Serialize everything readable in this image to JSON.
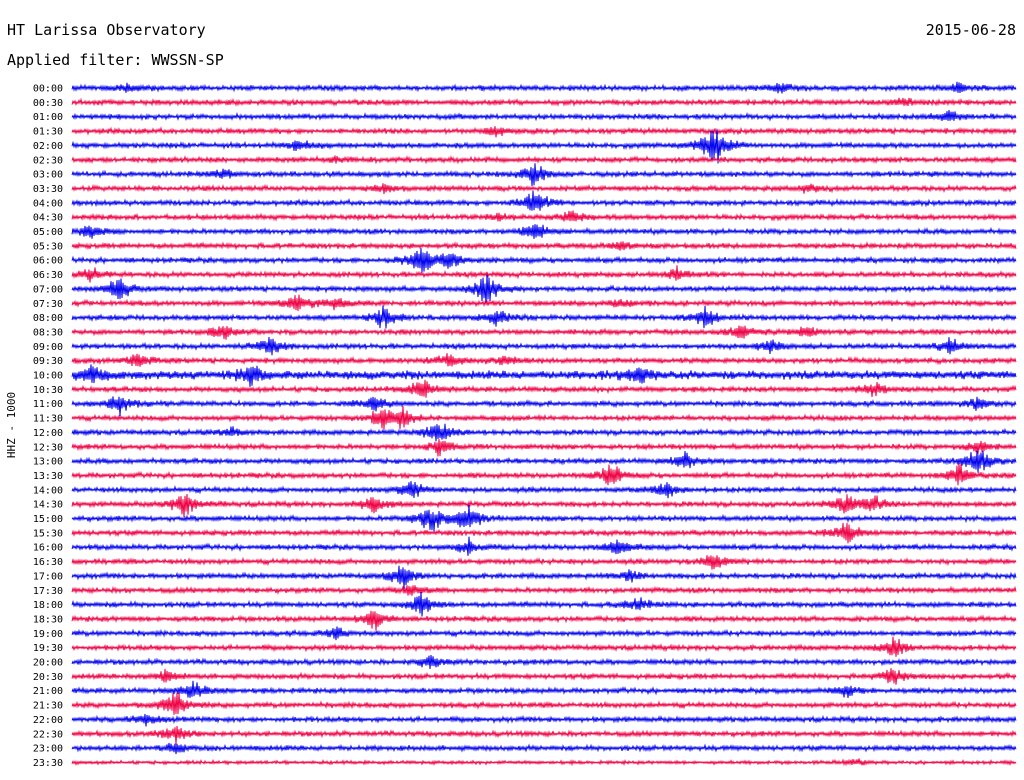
{
  "header": {
    "title": "HT Larissa Observatory",
    "date": "2015-06-28",
    "filter_text": "Applied filter: WWSSN-SP"
  },
  "axis": {
    "side_label": "HHZ - 1000"
  },
  "colors": {
    "even_trace": "#0000ee",
    "odd_trace": "#ee0044",
    "background": "#ffffff",
    "text": "#000000"
  },
  "chart_data": {
    "type": "line",
    "title": "HT Larissa Observatory",
    "subtitle": "Applied filter: WWSSN-SP",
    "ylabel": "HHZ - 1000",
    "xlabel": "",
    "grid": false,
    "legend": "none",
    "rows": [
      {
        "label": "00:00",
        "color": "even",
        "amp": 3,
        "events": [
          {
            "at": 0.06,
            "amp": 5
          },
          {
            "at": 0.75,
            "amp": 8
          },
          {
            "at": 0.94,
            "amp": 6
          }
        ]
      },
      {
        "label": "00:30",
        "color": "odd",
        "amp": 3,
        "events": [
          {
            "at": 0.88,
            "amp": 6
          }
        ]
      },
      {
        "label": "01:00",
        "color": "even",
        "amp": 3,
        "events": [
          {
            "at": 0.93,
            "amp": 7
          }
        ]
      },
      {
        "label": "01:30",
        "color": "odd",
        "amp": 3,
        "events": [
          {
            "at": 0.45,
            "amp": 6
          }
        ]
      },
      {
        "label": "02:00",
        "color": "even",
        "amp": 3,
        "events": [
          {
            "at": 0.68,
            "amp": 28
          },
          {
            "at": 0.24,
            "amp": 7
          }
        ]
      },
      {
        "label": "02:30",
        "color": "odd",
        "amp": 3,
        "events": [
          {
            "at": 0.28,
            "amp": 4
          }
        ]
      },
      {
        "label": "03:00",
        "color": "even",
        "amp": 3,
        "events": [
          {
            "at": 0.49,
            "amp": 14
          },
          {
            "at": 0.16,
            "amp": 6
          }
        ]
      },
      {
        "label": "03:30",
        "color": "odd",
        "amp": 3,
        "events": [
          {
            "at": 0.33,
            "amp": 5
          },
          {
            "at": 0.78,
            "amp": 5
          }
        ]
      },
      {
        "label": "04:00",
        "color": "even",
        "amp": 3,
        "events": [
          {
            "at": 0.49,
            "amp": 16
          }
        ]
      },
      {
        "label": "04:30",
        "color": "odd",
        "amp": 3,
        "events": [
          {
            "at": 0.53,
            "amp": 8
          },
          {
            "at": 0.45,
            "amp": 4
          }
        ]
      },
      {
        "label": "05:00",
        "color": "even",
        "amp": 3,
        "events": [
          {
            "at": 0.02,
            "amp": 8
          },
          {
            "at": 0.49,
            "amp": 12
          }
        ]
      },
      {
        "label": "05:30",
        "color": "odd",
        "amp": 3,
        "events": [
          {
            "at": 0.58,
            "amp": 5
          }
        ]
      },
      {
        "label": "06:00",
        "color": "even",
        "amp": 3,
        "events": [
          {
            "at": 0.37,
            "amp": 18
          },
          {
            "at": 0.4,
            "amp": 12
          }
        ]
      },
      {
        "label": "06:30",
        "color": "odd",
        "amp": 3,
        "events": [
          {
            "at": 0.02,
            "amp": 8
          },
          {
            "at": 0.64,
            "amp": 9
          }
        ]
      },
      {
        "label": "07:00",
        "color": "even",
        "amp": 3,
        "events": [
          {
            "at": 0.05,
            "amp": 14
          },
          {
            "at": 0.44,
            "amp": 20
          }
        ]
      },
      {
        "label": "07:30",
        "color": "odd",
        "amp": 3,
        "events": [
          {
            "at": 0.24,
            "amp": 12
          },
          {
            "at": 0.28,
            "amp": 9
          },
          {
            "at": 0.58,
            "amp": 6
          }
        ]
      },
      {
        "label": "08:00",
        "color": "even",
        "amp": 3,
        "events": [
          {
            "at": 0.33,
            "amp": 14
          },
          {
            "at": 0.45,
            "amp": 10
          },
          {
            "at": 0.67,
            "amp": 12
          }
        ]
      },
      {
        "label": "08:30",
        "color": "odd",
        "amp": 3,
        "events": [
          {
            "at": 0.16,
            "amp": 8
          },
          {
            "at": 0.71,
            "amp": 10
          },
          {
            "at": 0.78,
            "amp": 7
          }
        ]
      },
      {
        "label": "09:00",
        "color": "even",
        "amp": 3,
        "events": [
          {
            "at": 0.21,
            "amp": 12
          },
          {
            "at": 0.74,
            "amp": 10
          },
          {
            "at": 0.93,
            "amp": 9
          }
        ]
      },
      {
        "label": "09:30",
        "color": "odd",
        "amp": 3,
        "events": [
          {
            "at": 0.07,
            "amp": 9
          },
          {
            "at": 0.4,
            "amp": 10
          },
          {
            "at": 0.46,
            "amp": 7
          }
        ]
      },
      {
        "label": "10:00",
        "color": "even",
        "amp": 5,
        "events": [
          {
            "at": 0.02,
            "amp": 12
          },
          {
            "at": 0.19,
            "amp": 14
          },
          {
            "at": 0.6,
            "amp": 10
          }
        ]
      },
      {
        "label": "10:30",
        "color": "odd",
        "amp": 3,
        "events": [
          {
            "at": 0.37,
            "amp": 14
          },
          {
            "at": 0.85,
            "amp": 9
          }
        ]
      },
      {
        "label": "11:00",
        "color": "even",
        "amp": 3,
        "events": [
          {
            "at": 0.05,
            "amp": 12
          },
          {
            "at": 0.32,
            "amp": 10
          },
          {
            "at": 0.96,
            "amp": 8
          }
        ]
      },
      {
        "label": "11:30",
        "color": "odd",
        "amp": 3,
        "events": [
          {
            "at": 0.33,
            "amp": 14
          },
          {
            "at": 0.35,
            "amp": 10
          }
        ]
      },
      {
        "label": "12:00",
        "color": "even",
        "amp": 3,
        "events": [
          {
            "at": 0.39,
            "amp": 16
          },
          {
            "at": 0.17,
            "amp": 6
          }
        ]
      },
      {
        "label": "12:30",
        "color": "odd",
        "amp": 3,
        "events": [
          {
            "at": 0.39,
            "amp": 10
          },
          {
            "at": 0.96,
            "amp": 8
          }
        ]
      },
      {
        "label": "13:00",
        "color": "even",
        "amp": 3,
        "events": [
          {
            "at": 0.65,
            "amp": 10
          },
          {
            "at": 0.96,
            "amp": 18
          }
        ]
      },
      {
        "label": "13:30",
        "color": "odd",
        "amp": 3,
        "events": [
          {
            "at": 0.57,
            "amp": 16
          },
          {
            "at": 0.94,
            "amp": 12
          }
        ]
      },
      {
        "label": "14:00",
        "color": "even",
        "amp": 3,
        "events": [
          {
            "at": 0.36,
            "amp": 12
          },
          {
            "at": 0.63,
            "amp": 10
          }
        ]
      },
      {
        "label": "14:30",
        "color": "odd",
        "amp": 3,
        "events": [
          {
            "at": 0.12,
            "amp": 14
          },
          {
            "at": 0.32,
            "amp": 10
          },
          {
            "at": 0.82,
            "amp": 12
          },
          {
            "at": 0.85,
            "amp": 10
          }
        ]
      },
      {
        "label": "15:00",
        "color": "even",
        "amp": 3,
        "events": [
          {
            "at": 0.38,
            "amp": 18
          },
          {
            "at": 0.42,
            "amp": 16
          }
        ]
      },
      {
        "label": "15:30",
        "color": "odd",
        "amp": 3,
        "events": [
          {
            "at": 0.82,
            "amp": 14
          }
        ]
      },
      {
        "label": "16:00",
        "color": "even",
        "amp": 3,
        "events": [
          {
            "at": 0.42,
            "amp": 10
          },
          {
            "at": 0.58,
            "amp": 12
          }
        ]
      },
      {
        "label": "16:30",
        "color": "odd",
        "amp": 3,
        "events": [
          {
            "at": 0.68,
            "amp": 10
          }
        ]
      },
      {
        "label": "17:00",
        "color": "even",
        "amp": 3,
        "events": [
          {
            "at": 0.35,
            "amp": 14
          },
          {
            "at": 0.59,
            "amp": 6
          }
        ]
      },
      {
        "label": "17:30",
        "color": "odd",
        "amp": 3,
        "events": [
          {
            "at": 0.36,
            "amp": 6
          }
        ]
      },
      {
        "label": "18:00",
        "color": "even",
        "amp": 3,
        "events": [
          {
            "at": 0.37,
            "amp": 14
          },
          {
            "at": 0.6,
            "amp": 8
          }
        ]
      },
      {
        "label": "18:30",
        "color": "odd",
        "amp": 3,
        "events": [
          {
            "at": 0.32,
            "amp": 14
          }
        ]
      },
      {
        "label": "19:00",
        "color": "even",
        "amp": 3,
        "events": [
          {
            "at": 0.28,
            "amp": 6
          }
        ]
      },
      {
        "label": "19:30",
        "color": "odd",
        "amp": 3,
        "events": [
          {
            "at": 0.87,
            "amp": 12
          }
        ]
      },
      {
        "label": "20:00",
        "color": "even",
        "amp": 3,
        "events": [
          {
            "at": 0.38,
            "amp": 8
          }
        ]
      },
      {
        "label": "20:30",
        "color": "odd",
        "amp": 3,
        "events": [
          {
            "at": 0.1,
            "amp": 8
          },
          {
            "at": 0.87,
            "amp": 10
          }
        ]
      },
      {
        "label": "21:00",
        "color": "even",
        "amp": 3,
        "events": [
          {
            "at": 0.13,
            "amp": 12
          },
          {
            "at": 0.82,
            "amp": 8
          }
        ]
      },
      {
        "label": "21:30",
        "color": "odd",
        "amp": 3,
        "events": [
          {
            "at": 0.11,
            "amp": 18
          }
        ]
      },
      {
        "label": "22:00",
        "color": "even",
        "amp": 3,
        "events": [
          {
            "at": 0.08,
            "amp": 8
          }
        ]
      },
      {
        "label": "22:30",
        "color": "odd",
        "amp": 3,
        "events": [
          {
            "at": 0.11,
            "amp": 12
          }
        ]
      },
      {
        "label": "23:00",
        "color": "even",
        "amp": 3,
        "events": [
          {
            "at": 0.11,
            "amp": 6
          }
        ]
      },
      {
        "label": "23:30",
        "color": "odd",
        "amp": 2,
        "events": [
          {
            "at": 0.83,
            "amp": 4
          }
        ]
      }
    ]
  }
}
